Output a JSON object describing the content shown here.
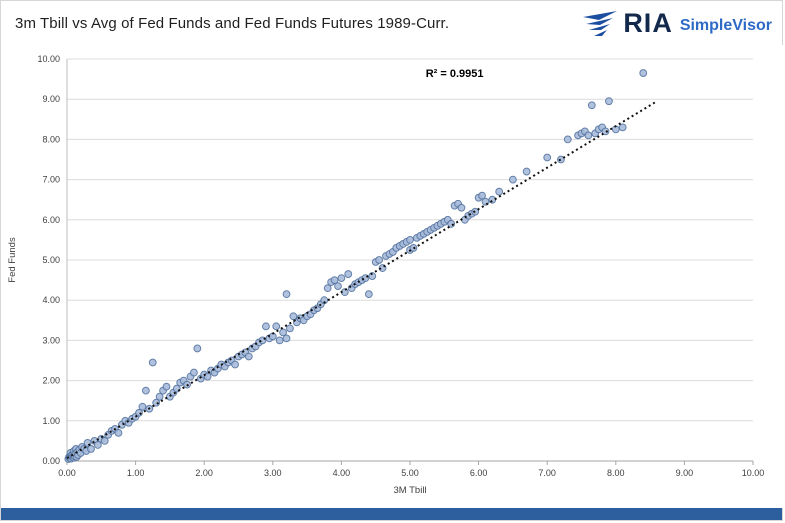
{
  "header": {
    "title": "3m Tbill vs Avg of Fed Funds and Fed Funds Futures 1989-Curr.",
    "logo": {
      "brand": "RIA",
      "product": "SimpleVisor"
    }
  },
  "footer": {
    "bar_color": "#2d5f9e"
  },
  "chart_data": {
    "type": "scatter",
    "title": "3m Tbill vs Avg of Fed Funds and Fed Funds Futures 1989-Curr.",
    "xlabel": "3M Tbill",
    "ylabel": "Fed Funds",
    "xlim": [
      0,
      10
    ],
    "ylim": [
      0,
      10
    ],
    "x_ticks": [
      0,
      1,
      2,
      3,
      4,
      5,
      6,
      7,
      8,
      9,
      10
    ],
    "y_ticks": [
      0,
      1,
      2,
      3,
      4,
      5,
      6,
      7,
      8,
      9,
      10
    ],
    "grid": true,
    "annotation": {
      "text": "R² = 0.9951",
      "x": 5.65,
      "y": 9.55
    },
    "r_squared": 0.9951,
    "trendline": {
      "x1": 0,
      "y1": 0.07,
      "x2": 8.6,
      "y2": 8.95,
      "style": "dotted",
      "color": "#111111"
    },
    "marker": {
      "fill": "#a9bcdc",
      "stroke": "#54739f",
      "opacity": 0.9,
      "radius": 3.4
    },
    "points": [
      [
        0.02,
        0.05
      ],
      [
        0.03,
        0.1
      ],
      [
        0.04,
        0.08
      ],
      [
        0.05,
        0.12
      ],
      [
        0.05,
        0.2
      ],
      [
        0.06,
        0.06
      ],
      [
        0.07,
        0.15
      ],
      [
        0.08,
        0.1
      ],
      [
        0.09,
        0.18
      ],
      [
        0.1,
        0.08
      ],
      [
        0.1,
        0.25
      ],
      [
        0.11,
        0.12
      ],
      [
        0.12,
        0.18
      ],
      [
        0.13,
        0.3
      ],
      [
        0.14,
        0.1
      ],
      [
        0.15,
        0.22
      ],
      [
        0.16,
        0.15
      ],
      [
        0.18,
        0.28
      ],
      [
        0.2,
        0.2
      ],
      [
        0.22,
        0.35
      ],
      [
        0.25,
        0.3
      ],
      [
        0.28,
        0.25
      ],
      [
        0.3,
        0.45
      ],
      [
        0.35,
        0.3
      ],
      [
        0.4,
        0.5
      ],
      [
        0.45,
        0.4
      ],
      [
        0.5,
        0.55
      ],
      [
        0.55,
        0.5
      ],
      [
        0.6,
        0.65
      ],
      [
        0.65,
        0.75
      ],
      [
        0.7,
        0.8
      ],
      [
        0.75,
        0.7
      ],
      [
        0.8,
        0.9
      ],
      [
        0.85,
        1.0
      ],
      [
        0.9,
        0.95
      ],
      [
        0.95,
        1.05
      ],
      [
        1.0,
        1.1
      ],
      [
        1.05,
        1.2
      ],
      [
        1.1,
        1.35
      ],
      [
        1.15,
        1.75
      ],
      [
        1.2,
        1.3
      ],
      [
        1.25,
        2.45
      ],
      [
        1.3,
        1.45
      ],
      [
        1.35,
        1.6
      ],
      [
        1.4,
        1.75
      ],
      [
        1.45,
        1.85
      ],
      [
        1.5,
        1.6
      ],
      [
        1.55,
        1.7
      ],
      [
        1.6,
        1.8
      ],
      [
        1.65,
        1.95
      ],
      [
        1.7,
        2.0
      ],
      [
        1.75,
        1.9
      ],
      [
        1.8,
        2.1
      ],
      [
        1.85,
        2.2
      ],
      [
        1.9,
        2.8
      ],
      [
        1.95,
        2.05
      ],
      [
        2.0,
        2.15
      ],
      [
        2.05,
        2.1
      ],
      [
        2.1,
        2.25
      ],
      [
        2.15,
        2.2
      ],
      [
        2.2,
        2.3
      ],
      [
        2.25,
        2.4
      ],
      [
        2.3,
        2.35
      ],
      [
        2.35,
        2.45
      ],
      [
        2.4,
        2.5
      ],
      [
        2.45,
        2.4
      ],
      [
        2.5,
        2.6
      ],
      [
        2.55,
        2.65
      ],
      [
        2.6,
        2.7
      ],
      [
        2.65,
        2.6
      ],
      [
        2.7,
        2.8
      ],
      [
        2.75,
        2.85
      ],
      [
        2.8,
        2.95
      ],
      [
        2.85,
        3.0
      ],
      [
        2.9,
        3.35
      ],
      [
        2.95,
        3.05
      ],
      [
        3.0,
        3.1
      ],
      [
        3.05,
        3.35
      ],
      [
        3.1,
        3.0
      ],
      [
        3.15,
        3.2
      ],
      [
        3.2,
        4.15
      ],
      [
        3.2,
        3.05
      ],
      [
        3.25,
        3.3
      ],
      [
        3.3,
        3.6
      ],
      [
        3.35,
        3.45
      ],
      [
        3.4,
        3.55
      ],
      [
        3.45,
        3.5
      ],
      [
        3.5,
        3.6
      ],
      [
        3.55,
        3.65
      ],
      [
        3.6,
        3.75
      ],
      [
        3.65,
        3.8
      ],
      [
        3.7,
        3.9
      ],
      [
        3.75,
        4.0
      ],
      [
        3.8,
        4.3
      ],
      [
        3.85,
        4.45
      ],
      [
        3.9,
        4.5
      ],
      [
        3.95,
        4.35
      ],
      [
        4.0,
        4.55
      ],
      [
        4.05,
        4.2
      ],
      [
        4.1,
        4.65
      ],
      [
        4.15,
        4.3
      ],
      [
        4.2,
        4.4
      ],
      [
        4.25,
        4.45
      ],
      [
        4.3,
        4.5
      ],
      [
        4.35,
        4.55
      ],
      [
        4.4,
        4.15
      ],
      [
        4.45,
        4.6
      ],
      [
        4.5,
        4.95
      ],
      [
        4.55,
        5.0
      ],
      [
        4.6,
        4.8
      ],
      [
        4.65,
        5.1
      ],
      [
        4.7,
        5.15
      ],
      [
        4.75,
        5.2
      ],
      [
        4.8,
        5.3
      ],
      [
        4.85,
        5.35
      ],
      [
        4.9,
        5.4
      ],
      [
        4.95,
        5.45
      ],
      [
        5.0,
        5.5
      ],
      [
        5.0,
        5.25
      ],
      [
        5.05,
        5.3
      ],
      [
        5.1,
        5.55
      ],
      [
        5.15,
        5.6
      ],
      [
        5.2,
        5.65
      ],
      [
        5.25,
        5.7
      ],
      [
        5.3,
        5.75
      ],
      [
        5.35,
        5.8
      ],
      [
        5.4,
        5.85
      ],
      [
        5.45,
        5.9
      ],
      [
        5.5,
        5.95
      ],
      [
        5.55,
        6.0
      ],
      [
        5.6,
        5.9
      ],
      [
        5.65,
        6.35
      ],
      [
        5.7,
        6.4
      ],
      [
        5.75,
        6.3
      ],
      [
        5.8,
        6.0
      ],
      [
        5.85,
        6.1
      ],
      [
        5.9,
        6.15
      ],
      [
        5.95,
        6.2
      ],
      [
        6.0,
        6.55
      ],
      [
        6.05,
        6.6
      ],
      [
        6.1,
        6.45
      ],
      [
        6.2,
        6.5
      ],
      [
        6.3,
        6.7
      ],
      [
        6.5,
        7.0
      ],
      [
        6.7,
        7.2
      ],
      [
        7.0,
        7.55
      ],
      [
        7.2,
        7.5
      ],
      [
        7.3,
        8.0
      ],
      [
        7.45,
        8.1
      ],
      [
        7.5,
        8.15
      ],
      [
        7.55,
        8.2
      ],
      [
        7.6,
        8.1
      ],
      [
        7.65,
        8.85
      ],
      [
        7.7,
        8.15
      ],
      [
        7.75,
        8.25
      ],
      [
        7.8,
        8.3
      ],
      [
        7.85,
        8.2
      ],
      [
        7.9,
        8.95
      ],
      [
        8.0,
        8.25
      ],
      [
        8.1,
        8.3
      ],
      [
        8.4,
        9.65
      ]
    ]
  }
}
